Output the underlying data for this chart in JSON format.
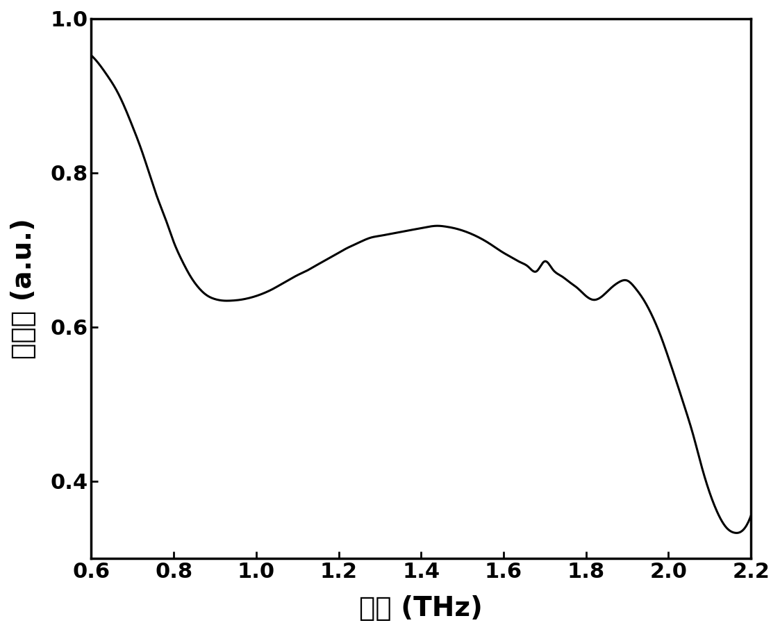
{
  "xlabel": "频率 (THz)",
  "ylabel": "透射率 (a.u.)",
  "xlim": [
    0.6,
    2.2
  ],
  "ylim": [
    0.3,
    1.0
  ],
  "xticks": [
    0.6,
    0.8,
    1.0,
    1.2,
    1.4,
    1.6,
    1.8,
    2.0,
    2.2
  ],
  "yticks": [
    0.4,
    0.6,
    0.8,
    1.0
  ],
  "line_color": "#000000",
  "line_width": 2.2,
  "background_color": "#ffffff",
  "x": [
    0.6,
    0.62,
    0.64,
    0.66,
    0.68,
    0.7,
    0.72,
    0.74,
    0.76,
    0.78,
    0.8,
    0.82,
    0.84,
    0.86,
    0.88,
    0.9,
    0.92,
    0.94,
    0.96,
    0.98,
    1.0,
    1.02,
    1.04,
    1.06,
    1.08,
    1.1,
    1.12,
    1.14,
    1.16,
    1.18,
    1.2,
    1.22,
    1.24,
    1.26,
    1.28,
    1.3,
    1.32,
    1.34,
    1.36,
    1.38,
    1.4,
    1.42,
    1.44,
    1.46,
    1.48,
    1.5,
    1.52,
    1.54,
    1.56,
    1.58,
    1.6,
    1.62,
    1.64,
    1.66,
    1.68,
    1.7,
    1.72,
    1.74,
    1.76,
    1.78,
    1.8,
    1.82,
    1.84,
    1.86,
    1.88,
    1.9,
    1.92,
    1.94,
    1.96,
    1.98,
    2.0,
    2.02,
    2.04,
    2.06,
    2.08,
    2.1,
    2.12,
    2.14,
    2.16,
    2.18,
    2.2
  ],
  "y": [
    0.952,
    0.94,
    0.925,
    0.908,
    0.886,
    0.86,
    0.832,
    0.8,
    0.768,
    0.74,
    0.71,
    0.686,
    0.666,
    0.651,
    0.641,
    0.636,
    0.634,
    0.634,
    0.635,
    0.637,
    0.64,
    0.644,
    0.649,
    0.655,
    0.661,
    0.667,
    0.672,
    0.678,
    0.684,
    0.69,
    0.696,
    0.702,
    0.707,
    0.712,
    0.716,
    0.718,
    0.72,
    0.722,
    0.724,
    0.726,
    0.728,
    0.73,
    0.731,
    0.73,
    0.728,
    0.725,
    0.721,
    0.716,
    0.71,
    0.703,
    0.696,
    0.69,
    0.684,
    0.678,
    0.672,
    0.685,
    0.674,
    0.666,
    0.658,
    0.65,
    0.64,
    0.635,
    0.64,
    0.65,
    0.658,
    0.66,
    0.65,
    0.635,
    0.615,
    0.59,
    0.56,
    0.528,
    0.495,
    0.46,
    0.42,
    0.385,
    0.358,
    0.34,
    0.333,
    0.336,
    0.355
  ]
}
